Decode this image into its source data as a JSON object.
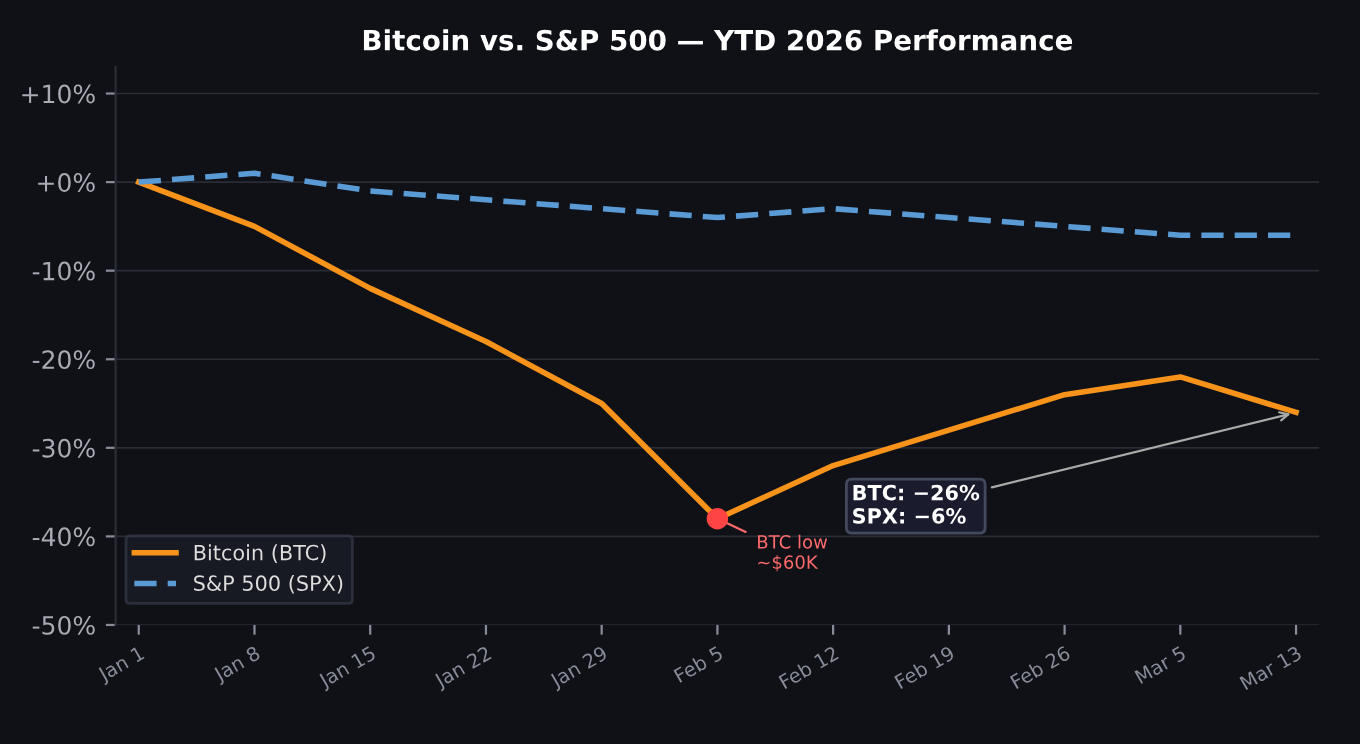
{
  "chart_data": {
    "type": "line",
    "title": "Bitcoin vs. S&P 500 — YTD 2026 Performance",
    "categories": [
      "Jan 1",
      "Jan 8",
      "Jan 15",
      "Jan 22",
      "Jan 29",
      "Feb 5",
      "Feb 12",
      "Feb 19",
      "Feb 26",
      "Mar 5",
      "Mar 13"
    ],
    "series": [
      {
        "name": "Bitcoin (BTC)",
        "color": "#f7931a",
        "line_style": "solid",
        "values": [
          0,
          -5,
          -12,
          -18,
          -25,
          -38,
          -32,
          -28,
          -24,
          -22,
          -26
        ]
      },
      {
        "name": "S&P 500 (SPX)",
        "color": "#5b9bd5",
        "line_style": "dashed",
        "values": [
          0,
          1,
          -1,
          -2,
          -3,
          -4,
          -3,
          -4,
          -5,
          -6,
          -6
        ]
      }
    ],
    "ylim": [
      -50,
      13
    ],
    "yticks": [
      {
        "value": -50,
        "label": "-50%"
      },
      {
        "value": -40,
        "label": "-40%"
      },
      {
        "value": -30,
        "label": "-30%"
      },
      {
        "value": -20,
        "label": "-20%"
      },
      {
        "value": -10,
        "label": "-10%"
      },
      {
        "value": 0,
        "label": "+0%"
      },
      {
        "value": 10,
        "label": "+10%"
      }
    ],
    "grid": "y",
    "legend": "bottom left",
    "marker": "none",
    "annotations": [
      {
        "text": "BTC low\n~$60K",
        "x": "Feb 5",
        "y": -38
      },
      {
        "text": "BTC: −26%\nSPX: −6%",
        "x": "Mar 13",
        "y": -26
      }
    ]
  }
}
